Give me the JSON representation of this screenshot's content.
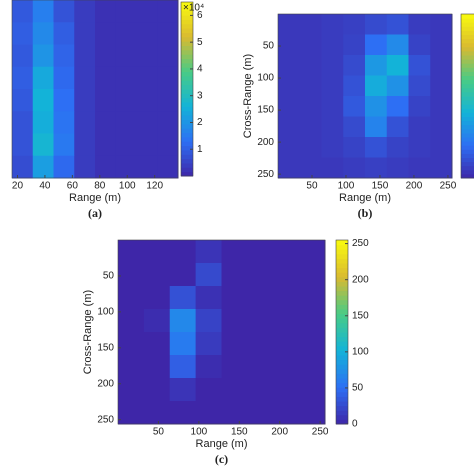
{
  "chart_data": [
    {
      "type": "heatmap",
      "panel_label": "(a)",
      "xlabel": "Range (m)",
      "xlim": [
        16,
        137
      ],
      "xticks": [
        20,
        40,
        60,
        80,
        100,
        120
      ],
      "ylim": [
        0,
        256
      ],
      "clim": [
        0,
        65000
      ],
      "color_multiplier": "×10⁴",
      "cticks": [
        {
          "value": 10000,
          "label": "1"
        },
        {
          "value": 20000,
          "label": "2"
        },
        {
          "value": 30000,
          "label": "3"
        },
        {
          "value": 40000,
          "label": "4"
        },
        {
          "value": 50000,
          "label": "5"
        },
        {
          "value": 60000,
          "label": "6"
        }
      ],
      "values": [
        [
          9000,
          16000,
          8000,
          4000,
          2000,
          2000,
          2000,
          2000
        ],
        [
          10000,
          18000,
          10000,
          4000,
          2000,
          2000,
          2000,
          2000
        ],
        [
          9000,
          20000,
          11000,
          4000,
          2000,
          2000,
          2000,
          2000
        ],
        [
          10000,
          24000,
          12000,
          4000,
          2000,
          2000,
          2000,
          2000
        ],
        [
          9000,
          26000,
          13000,
          4000,
          2000,
          2000,
          2000,
          2000
        ],
        [
          8000,
          25000,
          14000,
          4000,
          2000,
          2000,
          2000,
          2000
        ],
        [
          8000,
          27000,
          15000,
          4000,
          2000,
          2000,
          2000,
          2000
        ],
        [
          7000,
          22000,
          12000,
          4000,
          2000,
          2000,
          2000,
          2000
        ]
      ]
    },
    {
      "type": "heatmap",
      "panel_label": "(b)",
      "xlabel": "Range (m)",
      "ylabel": "Cross-Range (m)",
      "xlim": [
        0,
        256
      ],
      "xticks": [
        50,
        100,
        150,
        200,
        250
      ],
      "ylim": [
        0,
        256
      ],
      "yticks": [
        50,
        100,
        150,
        200,
        250
      ],
      "clim": [
        0,
        1
      ],
      "values": [
        [
          0.05,
          0.05,
          0.06,
          0.07,
          0.1,
          0.12,
          0.06,
          0.05
        ],
        [
          0.05,
          0.05,
          0.06,
          0.08,
          0.2,
          0.28,
          0.08,
          0.05
        ],
        [
          0.05,
          0.05,
          0.06,
          0.1,
          0.32,
          0.4,
          0.12,
          0.05
        ],
        [
          0.05,
          0.05,
          0.06,
          0.12,
          0.38,
          0.3,
          0.1,
          0.05
        ],
        [
          0.05,
          0.05,
          0.06,
          0.14,
          0.3,
          0.2,
          0.08,
          0.05
        ],
        [
          0.05,
          0.05,
          0.06,
          0.1,
          0.26,
          0.12,
          0.06,
          0.05
        ],
        [
          0.05,
          0.05,
          0.06,
          0.08,
          0.12,
          0.08,
          0.06,
          0.05
        ],
        [
          0.05,
          0.05,
          0.05,
          0.06,
          0.07,
          0.06,
          0.05,
          0.05
        ]
      ]
    },
    {
      "type": "heatmap",
      "panel_label": "(c)",
      "xlabel": "Range (m)",
      "ylabel": "Cross-Range (m)",
      "xlim": [
        0,
        256
      ],
      "xticks": [
        50,
        100,
        150,
        200,
        250
      ],
      "ylim": [
        0,
        256
      ],
      "yticks": [
        50,
        100,
        150,
        200,
        250
      ],
      "clim": [
        0,
        255
      ],
      "cticks": [
        0,
        50,
        100,
        150,
        200,
        250
      ],
      "values": [
        [
          0,
          0,
          0,
          10,
          0,
          0,
          0,
          0
        ],
        [
          0,
          0,
          0,
          25,
          0,
          0,
          0,
          0
        ],
        [
          0,
          0,
          30,
          8,
          0,
          0,
          0,
          0
        ],
        [
          0,
          5,
          70,
          20,
          0,
          0,
          0,
          0
        ],
        [
          0,
          0,
          60,
          15,
          0,
          0,
          0,
          0
        ],
        [
          0,
          0,
          40,
          5,
          0,
          0,
          0,
          0
        ],
        [
          0,
          0,
          10,
          0,
          0,
          0,
          0,
          0
        ],
        [
          0,
          0,
          0,
          0,
          0,
          0,
          0,
          0
        ]
      ]
    }
  ]
}
